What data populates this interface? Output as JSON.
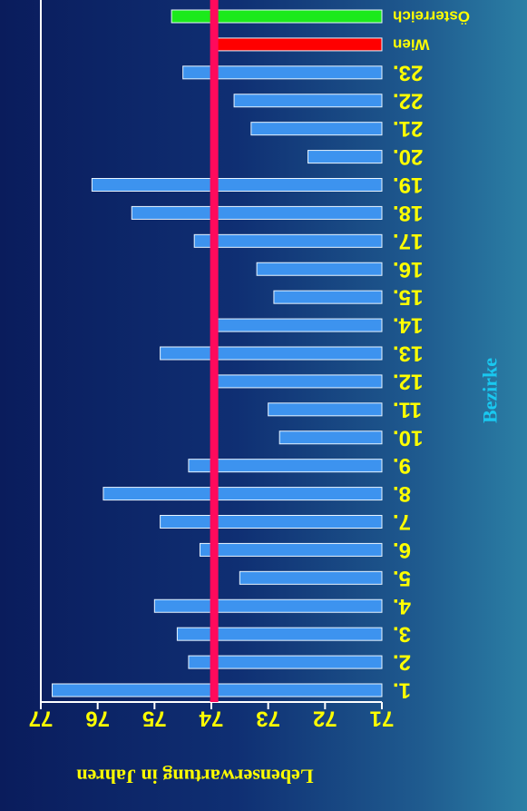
{
  "chart_data": {
    "type": "bar",
    "orientation": "horizontal",
    "rotated_180": true,
    "title": "",
    "xlabel": "Lebenserwartung in Jahren",
    "ylabel": "Bezirke",
    "xlim": [
      71,
      77
    ],
    "xticks": [
      "71",
      "72",
      "73",
      "74",
      "75",
      "76",
      "77"
    ],
    "categories": [
      "1.",
      "2.",
      "3.",
      "4.",
      "5.",
      "6.",
      "7.",
      "8.",
      "9.",
      "10.",
      "11.",
      "12.",
      "13.",
      "14.",
      "15.",
      "16.",
      "17.",
      "18.",
      "19.",
      "20.",
      "21.",
      "22.",
      "23.",
      "Wien",
      "Österreich"
    ],
    "values": [
      76.8,
      74.4,
      74.6,
      75.0,
      73.5,
      74.2,
      74.9,
      75.9,
      74.4,
      72.8,
      73.0,
      73.9,
      74.9,
      73.9,
      72.9,
      73.2,
      74.3,
      75.4,
      76.1,
      72.3,
      73.3,
      73.6,
      74.5,
      74.0,
      74.7
    ],
    "reference_line": {
      "value": 73.95,
      "color": "#ff0a5c"
    },
    "colors": {
      "default_bar": "#3d93ef",
      "wien_bar": "#ff0000",
      "oesterreich_bar": "#1bea1b",
      "text": "#ffff00",
      "ylabel_text": "#19c8f0",
      "axis": "#ffffff"
    },
    "grid": false,
    "legend": "none"
  }
}
